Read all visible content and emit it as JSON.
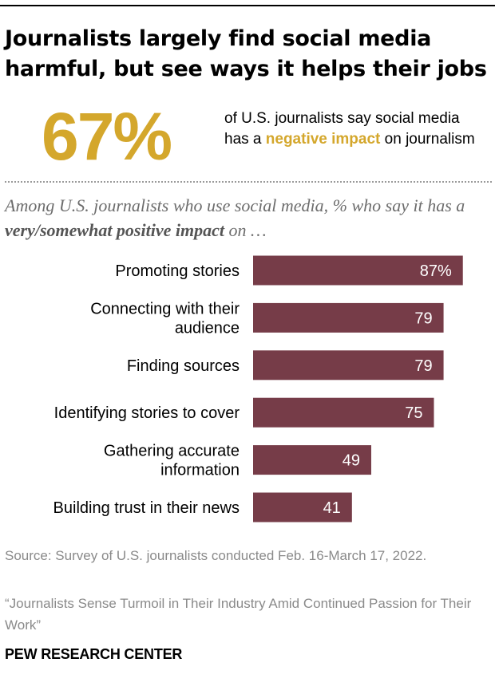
{
  "title": "Journalists largely find social media harmful, but see ways it helps their jobs",
  "headline_stat": {
    "value": "67%",
    "text_before": "of U.S. journalists say social media has a ",
    "highlight": "negative impact",
    "text_after": " on journalism"
  },
  "subtitle": {
    "part1": "Among U.S. journalists who use social media, % who say it has a ",
    "emphasis": "very/somewhat positive impact",
    "part2": " on …"
  },
  "chart_data": {
    "type": "bar",
    "orientation": "horizontal",
    "title": "Among U.S. journalists who use social media, % who say it has a very/somewhat positive impact on …",
    "categories": [
      [
        "Promoting stories"
      ],
      [
        "Connecting with their",
        "audience"
      ],
      [
        "Finding sources"
      ],
      [
        "Identifying stories to cover"
      ],
      [
        "Gathering accurate",
        "information"
      ],
      [
        "Building trust in their news"
      ]
    ],
    "values": [
      87,
      79,
      79,
      75,
      49,
      41
    ],
    "value_labels": [
      "87%",
      "79",
      "79",
      "75",
      "49",
      "41"
    ],
    "xlim": [
      0,
      100
    ],
    "grid": false,
    "legend": "none"
  },
  "source": "Source: Survey of U.S. journalists conducted Feb. 16-March 17, 2022.",
  "report": "“Journalists Sense Turmoil in Their Industry Amid Continued Passion for Their Work”",
  "brand": "PEW RESEARCH CENTER",
  "colors": {
    "bar": "#763c48",
    "accent": "#d4a72c",
    "bar_label": "#ffffff"
  }
}
